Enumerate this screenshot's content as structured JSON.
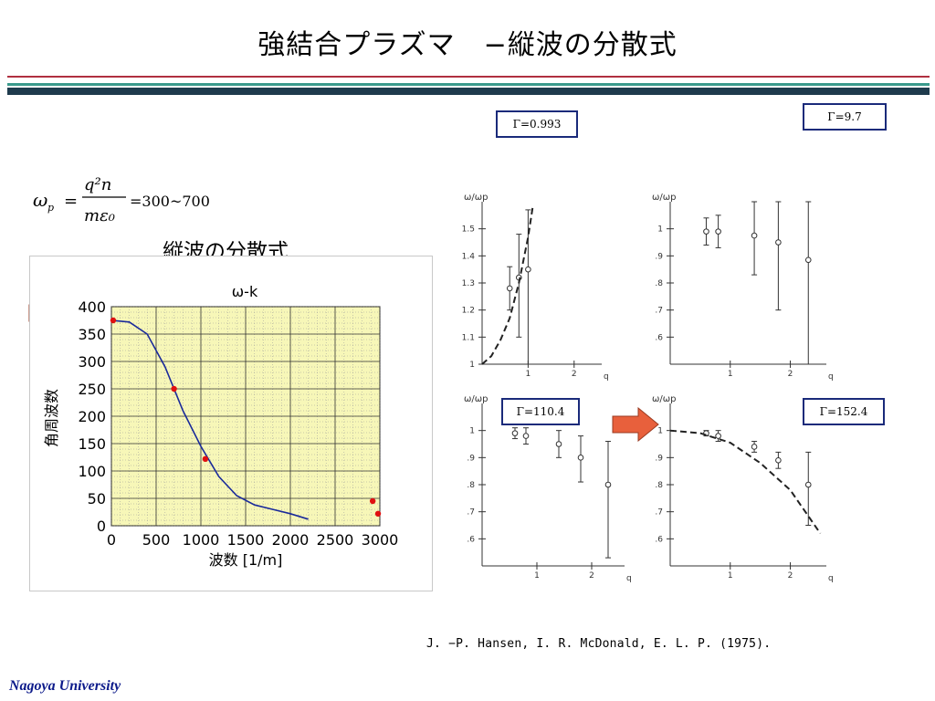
{
  "slide": {
    "title": "強結合プラズマ　−縦波の分散式",
    "formula_value": "=300~700",
    "subtitle": "縦波の分散式",
    "reference": "J. −P. Hansen, I. R. McDonald, E. L. P. (1975).",
    "footer": "Nagoya University"
  },
  "formula": {
    "lhs_symbol": "ω",
    "lhs_sub": "p",
    "numerator": "q²n",
    "denominator": "mε₀"
  },
  "gamma_labels": [
    "Γ=0.993",
    "Γ=9.7",
    "Γ=110.4",
    "Γ=152.4"
  ],
  "colors": {
    "title_rule_dark": "#1f3b4d",
    "title_rule_teal": "#3a9a8c",
    "rule_red": "#b03040",
    "plot_bg": "#f7f7b8",
    "curve": "#1a2a9a",
    "points": "#e01010",
    "arrow": "#e8603c",
    "gamma_border": "#1a2a7a",
    "footer": "#0c1a8a"
  },
  "icons": {
    "left_arrow": "right-arrow-icon",
    "right_arrow": "right-arrow-icon"
  },
  "chart_data": [
    {
      "type": "line",
      "title": "ω-k",
      "xlabel": "波数 [1/m]",
      "ylabel": "角周波数",
      "xlim": [
        0,
        3000
      ],
      "ylim": [
        0,
        400
      ],
      "xticks": [
        0,
        500,
        1000,
        1500,
        2000,
        2500,
        3000
      ],
      "yticks": [
        0,
        50,
        100,
        150,
        200,
        250,
        300,
        350,
        400
      ],
      "grid": true,
      "series": [
        {
          "kind": "line",
          "x": [
            0,
            200,
            400,
            600,
            800,
            1000,
            1200,
            1400,
            1600,
            1800,
            2000,
            2200
          ],
          "y": [
            375,
            372,
            350,
            290,
            210,
            145,
            90,
            55,
            38,
            30,
            22,
            12
          ]
        },
        {
          "kind": "scatter",
          "x": [
            20,
            700,
            1050,
            2920,
            2980
          ],
          "y": [
            375,
            250,
            122,
            45,
            22
          ]
        }
      ]
    },
    {
      "type": "scatter",
      "ylabel": "ω/ωp",
      "xlabel": "q",
      "xlim": [
        0,
        2.6
      ],
      "ylim": [
        1.0,
        1.6
      ],
      "yticks": [
        1,
        1.1,
        1.2,
        1.3,
        1.4,
        1.5
      ],
      "ytick_labels": [
        "1",
        "1.1",
        "1.2",
        "1.3",
        "1.4",
        "1.5"
      ],
      "xticks": [
        1,
        2
      ],
      "xtick_labels": [
        "1",
        "2"
      ],
      "series": [
        {
          "kind": "points",
          "x": [
            0.6,
            0.8,
            1.0
          ],
          "y": [
            1.28,
            1.32,
            1.35
          ],
          "err_lo": [
            1.2,
            1.1,
            1.0
          ],
          "err_hi": [
            1.36,
            1.48,
            1.57
          ]
        },
        {
          "kind": "dashed",
          "x": [
            0.0,
            0.2,
            0.4,
            0.6,
            0.8,
            1.0,
            1.1
          ],
          "y": [
            1.0,
            1.03,
            1.09,
            1.17,
            1.3,
            1.47,
            1.58
          ]
        }
      ]
    },
    {
      "type": "scatter",
      "ylabel": "ω/ωp",
      "xlabel": "q",
      "xlim": [
        0,
        2.6
      ],
      "ylim": [
        0.5,
        1.1
      ],
      "yticks": [
        0.6,
        0.7,
        0.8,
        0.9,
        1.0
      ],
      "ytick_labels": [
        ".6",
        ".7",
        ".8",
        ".9",
        "1"
      ],
      "xticks": [
        1,
        2
      ],
      "xtick_labels": [
        "1",
        "2"
      ],
      "series": [
        {
          "kind": "points",
          "x": [
            0.6,
            0.8,
            1.4,
            1.8,
            2.3
          ],
          "y": [
            0.99,
            0.99,
            0.975,
            0.95,
            0.885
          ],
          "err_lo": [
            0.94,
            0.93,
            0.83,
            0.7,
            0.5
          ],
          "err_hi": [
            1.04,
            1.05,
            1.12,
            1.14,
            1.12
          ]
        }
      ]
    },
    {
      "type": "scatter",
      "ylabel": "ω/ωp",
      "xlabel": "q",
      "xlim": [
        0,
        2.6
      ],
      "ylim": [
        0.5,
        1.1
      ],
      "yticks": [
        0.6,
        0.7,
        0.8,
        0.9,
        1.0
      ],
      "ytick_labels": [
        ".6",
        ".7",
        ".8",
        ".9",
        "1"
      ],
      "xticks": [
        1,
        2
      ],
      "xtick_labels": [
        "1",
        "2"
      ],
      "series": [
        {
          "kind": "points",
          "x": [
            0.6,
            0.8,
            1.4,
            1.8,
            2.3
          ],
          "y": [
            0.99,
            0.98,
            0.95,
            0.9,
            0.8
          ],
          "err_lo": [
            0.97,
            0.95,
            0.9,
            0.81,
            0.53
          ],
          "err_hi": [
            1.01,
            1.01,
            1.0,
            0.98,
            0.96
          ]
        }
      ]
    },
    {
      "type": "scatter",
      "ylabel": "ω/ωp",
      "xlabel": "q",
      "xlim": [
        0,
        2.6
      ],
      "ylim": [
        0.5,
        1.1
      ],
      "yticks": [
        0.6,
        0.7,
        0.8,
        0.9,
        1.0
      ],
      "ytick_labels": [
        ".6",
        ".7",
        ".8",
        ".9",
        "1"
      ],
      "xticks": [
        1,
        2
      ],
      "xtick_labels": [
        "1",
        "2"
      ],
      "series": [
        {
          "kind": "points",
          "x": [
            0.6,
            0.8,
            1.4,
            1.8,
            2.3
          ],
          "y": [
            0.99,
            0.98,
            0.94,
            0.89,
            0.8
          ],
          "err_lo": [
            0.98,
            0.96,
            0.92,
            0.86,
            0.65
          ],
          "err_hi": [
            1.0,
            1.0,
            0.96,
            0.92,
            0.92
          ]
        },
        {
          "kind": "dashed",
          "x": [
            0,
            0.5,
            1.0,
            1.5,
            2.0,
            2.5
          ],
          "y": [
            1.0,
            0.99,
            0.955,
            0.88,
            0.78,
            0.62
          ]
        }
      ]
    }
  ]
}
